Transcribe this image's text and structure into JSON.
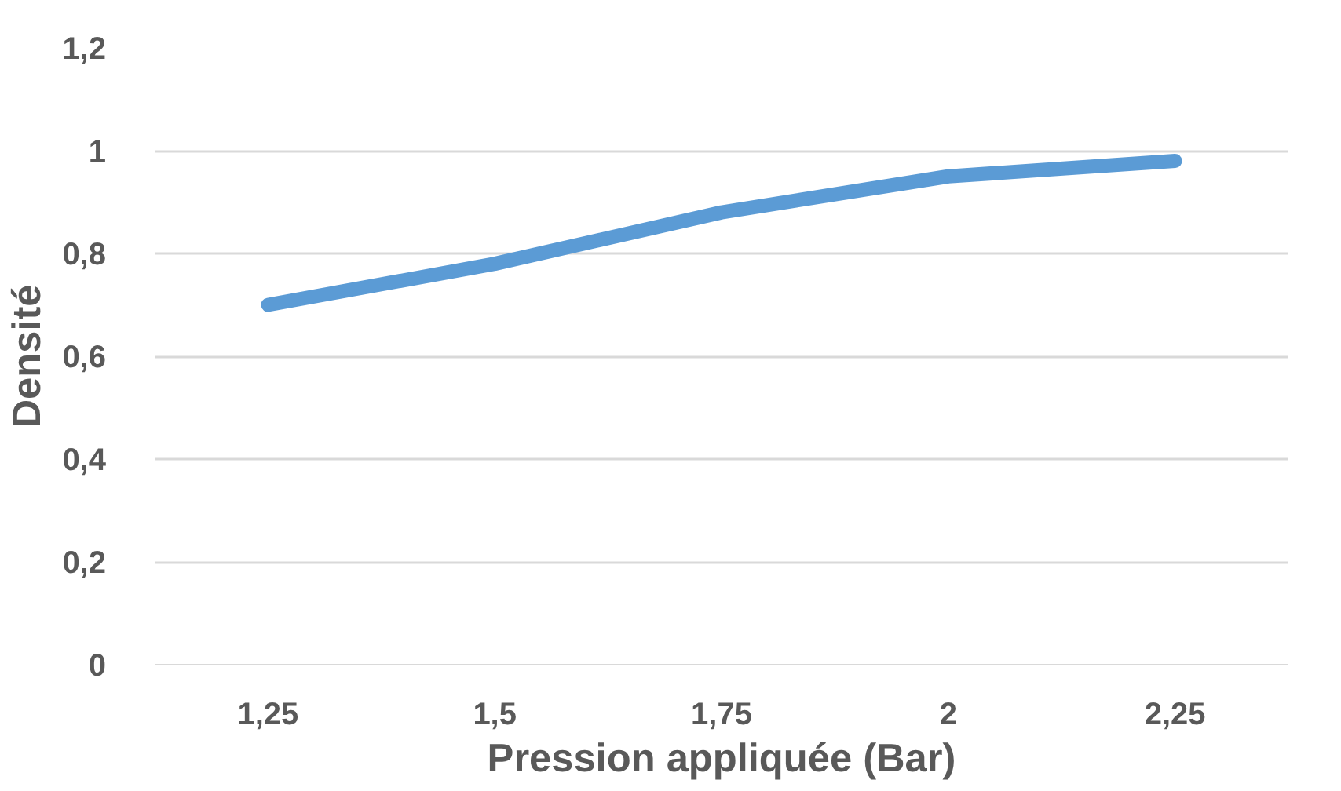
{
  "chart_data": {
    "type": "line",
    "xlabel": "Pression appliquée (Bar)",
    "ylabel": "Densité",
    "categories": [
      "1,25",
      "1,5",
      "1,75",
      "2",
      "2,25"
    ],
    "series": [
      {
        "color": "#5b9bd5",
        "values": [
          0.7,
          0.78,
          0.88,
          0.95,
          0.98
        ]
      }
    ],
    "ylim": [
      0,
      1.2
    ],
    "yticks": [
      0,
      {
        "value": 0.2,
        "label": "0,2"
      },
      {
        "value": 0.4,
        "label": "0,4"
      },
      {
        "value": 0.6,
        "label": "0,6"
      },
      {
        "value": 0.8,
        "label": "0,8"
      },
      1,
      {
        "value": 1.2,
        "label": "1,2"
      }
    ],
    "grid": "y",
    "line_style": "solid"
  }
}
